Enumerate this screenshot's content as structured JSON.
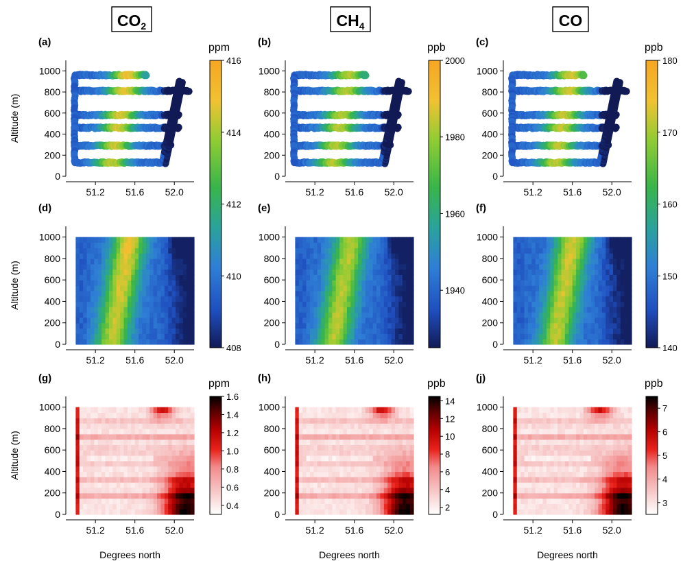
{
  "chart_data": {
    "type": "heatmap",
    "gas_titles": [
      {
        "main": "CO",
        "sub": "2"
      },
      {
        "main": "CH",
        "sub": "4"
      },
      {
        "main": "CO",
        "sub": ""
      }
    ],
    "xlabel": "Degrees north",
    "ylabel": "Altitude (m)",
    "x_ticks": [
      "51.2",
      "51.6",
      "52.0"
    ],
    "x_tick_values": [
      51.2,
      51.6,
      52.0
    ],
    "xlim": [
      50.9,
      52.2
    ],
    "y_ticks_top": [
      "0",
      "200",
      "400",
      "600",
      "800",
      "1000"
    ],
    "y_ticks_lower": [
      "0",
      "200",
      "400",
      "600",
      "800",
      "1000"
    ],
    "ylim": [
      0,
      1100
    ],
    "panel_labels": [
      "(a)",
      "(b)",
      "(c)",
      "(d)",
      "(e)",
      "(f)",
      "(g)",
      "(h)",
      "(j)"
    ],
    "concentration_colorbars": [
      {
        "unit": "ppm",
        "range": [
          408,
          416
        ],
        "ticks": [
          "408",
          "410",
          "412",
          "414",
          "416"
        ],
        "tick_values": [
          408,
          410,
          412,
          414,
          416
        ]
      },
      {
        "unit": "ppb",
        "range": [
          1925,
          2000
        ],
        "ticks": [
          "1940",
          "1960",
          "1980",
          "2000"
        ],
        "tick_values": [
          1940,
          1960,
          1980,
          2000
        ]
      },
      {
        "unit": "ppb",
        "range": [
          140,
          180
        ],
        "ticks": [
          "140",
          "150",
          "160",
          "170",
          "180"
        ],
        "tick_values": [
          140,
          150,
          160,
          170,
          180
        ]
      }
    ],
    "uncertainty_colorbars": [
      {
        "unit": "ppm",
        "range": [
          0.3,
          1.6
        ],
        "ticks": [
          "0.4",
          "0.6",
          "0.8",
          "1.0",
          "1.2",
          "1.4",
          "1.6"
        ],
        "tick_values": [
          0.4,
          0.6,
          0.8,
          1.0,
          1.2,
          1.4,
          1.6
        ]
      },
      {
        "unit": "ppb",
        "range": [
          1.2,
          14.5
        ],
        "ticks": [
          "2",
          "4",
          "6",
          "8",
          "10",
          "12",
          "14"
        ],
        "tick_values": [
          2,
          4,
          6,
          8,
          10,
          12,
          14
        ]
      },
      {
        "unit": "ppb",
        "range": [
          2.5,
          7.5
        ],
        "ticks": [
          "3",
          "4",
          "5",
          "6",
          "7"
        ],
        "tick_values": [
          3,
          4,
          5,
          6,
          7
        ]
      }
    ],
    "flight_track": {
      "legs": [
        {
          "altitude": 960,
          "lat_start": 51.02,
          "lat_end": 51.72
        },
        {
          "altitude": 810,
          "lat_start": 51.02,
          "lat_end": 52.15
        },
        {
          "altitude": 580,
          "lat_start": 51.02,
          "lat_end": 52.05
        },
        {
          "altitude": 460,
          "lat_start": 51.02,
          "lat_end": 52.05
        },
        {
          "altitude": 290,
          "lat_start": 51.02,
          "lat_end": 51.97
        },
        {
          "altitude": 130,
          "lat_start": 51.02,
          "lat_end": 51.88
        }
      ],
      "plume_center_lat": 51.42,
      "profile_ascent": [
        [
          51.88,
          130
        ],
        [
          52.05,
          900
        ]
      ]
    },
    "plume": {
      "center_lat_at_surface": 51.36,
      "center_lat_at_top": 51.55,
      "width_deg": 0.13
    },
    "uncertainty_peak": {
      "lat": 52.12,
      "altitude": 0
    }
  },
  "colors": {
    "concentration_scale": [
      "#111a55",
      "#1f4fbf",
      "#2f7fd6",
      "#2aa39a",
      "#39b54a",
      "#8fcc33",
      "#f1c232",
      "#f5a623"
    ],
    "uncertainty_scale": [
      "#ffffff",
      "#f7c6c6",
      "#f28b8b",
      "#e8221b",
      "#b30000",
      "#5c0000",
      "#000000"
    ]
  }
}
